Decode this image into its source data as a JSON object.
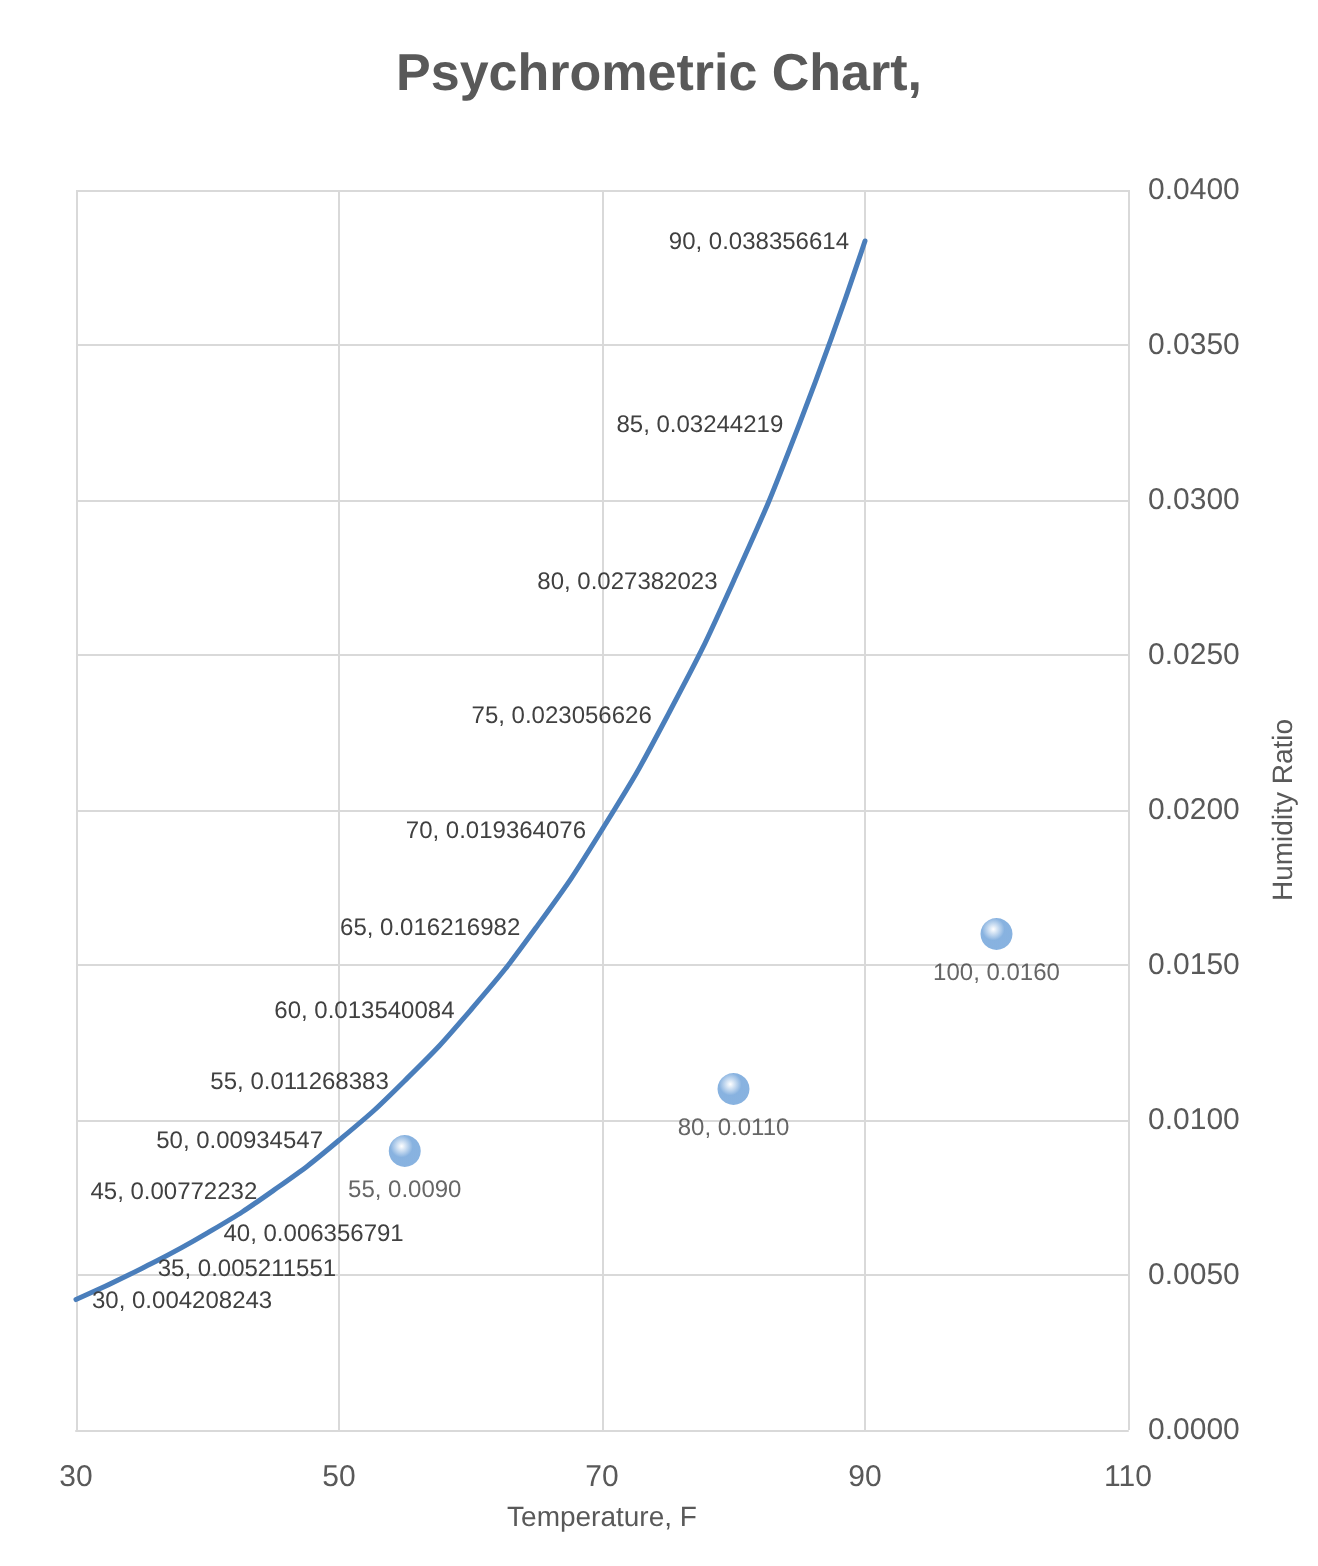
{
  "chart_data": {
    "type": "scatter",
    "title": "Psychrometric Chart,",
    "xlabel": "Temperature, F",
    "ylabel": "Humidity Ratio",
    "xlim": [
      30,
      110
    ],
    "xticks": [
      30,
      50,
      70,
      90,
      110
    ],
    "ylim": [
      0,
      0.04
    ],
    "yticks": [
      {
        "value": 0,
        "label": "0.0000"
      },
      {
        "value": 0.005,
        "label": "0.0050"
      },
      {
        "value": 0.01,
        "label": "0.0100"
      },
      {
        "value": 0.015,
        "label": "0.0150"
      },
      {
        "value": 0.02,
        "label": "0.0200"
      },
      {
        "value": 0.025,
        "label": "0.0250"
      },
      {
        "value": 0.03,
        "label": "0.0300"
      },
      {
        "value": 0.035,
        "label": "0.0350"
      },
      {
        "value": 0.04,
        "label": "0.0400"
      }
    ],
    "grid": true,
    "series": [
      {
        "type": "line",
        "color": "#4a7ebb",
        "marker": "none",
        "line_style": "solid",
        "x": [
          30,
          35,
          40,
          45,
          50,
          55,
          60,
          65,
          70,
          75,
          80,
          85,
          90
        ],
        "values": [
          0.004208243,
          0.005211551,
          0.006356791,
          0.00772232,
          0.00934547,
          0.011268383,
          0.013540084,
          0.016216982,
          0.019364076,
          0.023056626,
          0.027382023,
          0.03244219,
          0.038356614
        ],
        "value_labels": [
          "30, 0.004208243",
          "35, 0.005211551",
          "40, 0.006356791",
          "45, 0.00772232",
          "50, 0.00934547",
          "55, 0.011268383",
          "60, 0.013540084",
          "65, 0.016216982",
          "70, 0.019364076",
          "75, 0.023056626",
          "80, 0.027382023",
          "85, 0.03244219",
          "90, 0.038356614"
        ]
      },
      {
        "color": "#6a9fd8",
        "marker": "circle",
        "x": [
          55,
          80,
          100
        ],
        "values": [
          0.009,
          0.011,
          0.016
        ],
        "value_labels": [
          "55, 0.0090",
          "80, 0.0110",
          "100, 0.0160"
        ]
      }
    ]
  }
}
